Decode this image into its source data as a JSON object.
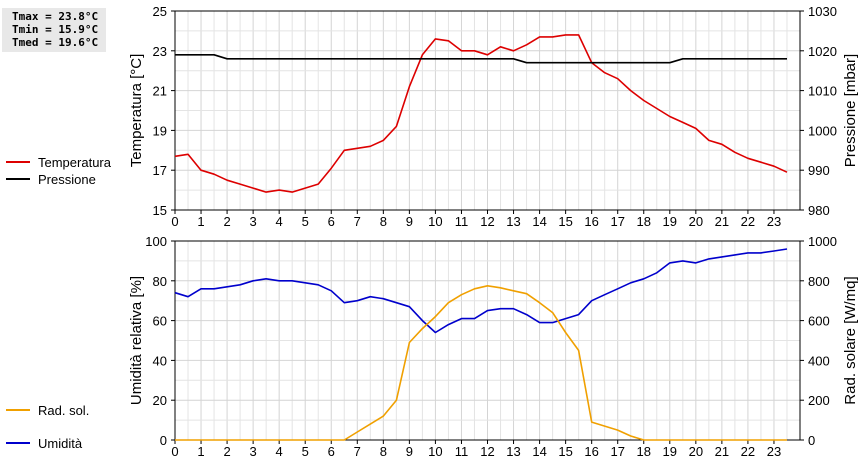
{
  "stats": {
    "tmax": "Tmax = 23.8°C",
    "tmin": "Tmin = 15.9°C",
    "tmed": "Tmed = 19.6°C"
  },
  "legend_top": [
    {
      "label": "Temperatura",
      "color": "#dd0000"
    },
    {
      "label": "Pressione",
      "color": "#000000"
    }
  ],
  "legend_bottom": [
    {
      "label": "Umidità",
      "color": "#0000cc"
    },
    {
      "label": "Rad. sol.",
      "color": "#f0a000"
    }
  ],
  "chart_data": [
    {
      "type": "line",
      "ylabel": "Temperatura [°C]",
      "y2label": "Pressione [mbar]",
      "xlim": [
        0,
        24
      ],
      "ylim": [
        15,
        25
      ],
      "y2lim": [
        980,
        1030
      ],
      "xticks": [
        "0",
        "1",
        "2",
        "3",
        "4",
        "5",
        "6",
        "7",
        "8",
        "9",
        "10",
        "11",
        "12",
        "13",
        "14",
        "15",
        "16",
        "17",
        "18",
        "19",
        "20",
        "21",
        "22",
        "23"
      ],
      "yticks": [
        15,
        17,
        19,
        21,
        23,
        25
      ],
      "y2ticks": [
        980,
        990,
        1000,
        1010,
        1020,
        1030
      ],
      "grid": true,
      "series": [
        {
          "name": "Temperatura",
          "axis": "left",
          "color": "#dd0000",
          "x": [
            0,
            0.5,
            1,
            1.5,
            2,
            2.5,
            3,
            3.5,
            4,
            4.5,
            5,
            5.5,
            6,
            6.5,
            7,
            7.5,
            8,
            8.5,
            9,
            9.5,
            10,
            10.5,
            11,
            11.5,
            12,
            12.5,
            13,
            13.5,
            14,
            14.5,
            15,
            15.5,
            16,
            16.5,
            17,
            17.5,
            18,
            18.5,
            19,
            19.5,
            20,
            20.5,
            21,
            21.5,
            22,
            22.5,
            23,
            23.5
          ],
          "y": [
            17.7,
            17.8,
            17.0,
            16.8,
            16.5,
            16.3,
            16.1,
            15.9,
            16.0,
            15.9,
            16.1,
            16.3,
            17.1,
            18.0,
            18.1,
            18.2,
            18.5,
            19.2,
            21.2,
            22.8,
            23.6,
            23.5,
            23.0,
            23.0,
            22.8,
            23.2,
            23.0,
            23.3,
            23.7,
            23.7,
            23.8,
            23.8,
            22.4,
            21.9,
            21.6,
            21.0,
            20.5,
            20.1,
            19.7,
            19.4,
            19.1,
            18.5,
            18.3,
            17.9,
            17.6,
            17.4,
            17.2,
            16.9
          ]
        },
        {
          "name": "Pressione",
          "axis": "right",
          "color": "#000000",
          "x": [
            0,
            0.5,
            1,
            1.5,
            2,
            2.5,
            3,
            3.5,
            4,
            4.5,
            5,
            5.5,
            6,
            6.5,
            7,
            7.5,
            8,
            8.5,
            9,
            9.5,
            10,
            10.5,
            11,
            11.5,
            12,
            12.5,
            13,
            13.5,
            14,
            14.5,
            15,
            15.5,
            16,
            16.5,
            17,
            17.5,
            18,
            18.5,
            19,
            19.5,
            20,
            20.5,
            21,
            21.5,
            22,
            22.5,
            23,
            23.5
          ],
          "y": [
            1019,
            1019,
            1019,
            1019,
            1018,
            1018,
            1018,
            1018,
            1018,
            1018,
            1018,
            1018,
            1018,
            1018,
            1018,
            1018,
            1018,
            1018,
            1018,
            1018,
            1018,
            1018,
            1018,
            1018,
            1018,
            1018,
            1018,
            1017,
            1017,
            1017,
            1017,
            1017,
            1017,
            1017,
            1017,
            1017,
            1017,
            1017,
            1017,
            1018,
            1018,
            1018,
            1018,
            1018,
            1018,
            1018,
            1018,
            1018
          ]
        }
      ]
    },
    {
      "type": "line",
      "ylabel": "Umidità relativa [%]",
      "y2label": "Rad. solare [W/mq]",
      "xlim": [
        0,
        24
      ],
      "ylim": [
        0,
        100
      ],
      "y2lim": [
        0,
        1000
      ],
      "xticks": [
        "0",
        "1",
        "2",
        "3",
        "4",
        "5",
        "6",
        "7",
        "8",
        "9",
        "10",
        "11",
        "12",
        "13",
        "14",
        "15",
        "16",
        "17",
        "18",
        "19",
        "20",
        "21",
        "22",
        "23"
      ],
      "yticks": [
        0,
        20,
        40,
        60,
        80,
        100
      ],
      "y2ticks": [
        0,
        200,
        400,
        600,
        800,
        1000
      ],
      "grid": true,
      "series": [
        {
          "name": "Umidità",
          "axis": "left",
          "color": "#0000cc",
          "x": [
            0,
            0.5,
            1,
            1.5,
            2,
            2.5,
            3,
            3.5,
            4,
            4.5,
            5,
            5.5,
            6,
            6.5,
            7,
            7.5,
            8,
            8.5,
            9,
            9.5,
            10,
            10.5,
            11,
            11.5,
            12,
            12.5,
            13,
            13.5,
            14,
            14.5,
            15,
            15.5,
            16,
            16.5,
            17,
            17.5,
            18,
            18.5,
            19,
            19.5,
            20,
            20.5,
            21,
            21.5,
            22,
            22.5,
            23,
            23.5
          ],
          "y": [
            74,
            72,
            76,
            76,
            77,
            78,
            80,
            81,
            80,
            80,
            79,
            78,
            75,
            69,
            70,
            72,
            71,
            69,
            67,
            60,
            54,
            58,
            61,
            61,
            65,
            66,
            66,
            63,
            59,
            59,
            61,
            63,
            70,
            73,
            76,
            79,
            81,
            84,
            89,
            90,
            89,
            91,
            92,
            93,
            94,
            94,
            95,
            96
          ]
        },
        {
          "name": "Rad. sol.",
          "axis": "right",
          "color": "#f0a000",
          "x": [
            0,
            0.5,
            1,
            1.5,
            2,
            2.5,
            3,
            3.5,
            4,
            4.5,
            5,
            5.5,
            6,
            6.5,
            7,
            7.5,
            8,
            8.5,
            9,
            9.5,
            10,
            10.5,
            11,
            11.5,
            12,
            12.5,
            13,
            13.5,
            14,
            14.5,
            15,
            15.5,
            16,
            16.5,
            17,
            17.5,
            18,
            18.5,
            19,
            19.5,
            20,
            20.5,
            21,
            21.5,
            22,
            22.5,
            23,
            23.5
          ],
          "y": [
            0,
            0,
            0,
            0,
            0,
            0,
            0,
            0,
            0,
            0,
            0,
            0,
            0,
            0,
            40,
            80,
            120,
            200,
            490,
            560,
            620,
            690,
            730,
            760,
            775,
            765,
            750,
            735,
            690,
            640,
            540,
            450,
            90,
            70,
            50,
            20,
            0,
            0,
            0,
            0,
            0,
            0,
            0,
            0,
            0,
            0,
            0,
            0
          ]
        }
      ]
    }
  ]
}
